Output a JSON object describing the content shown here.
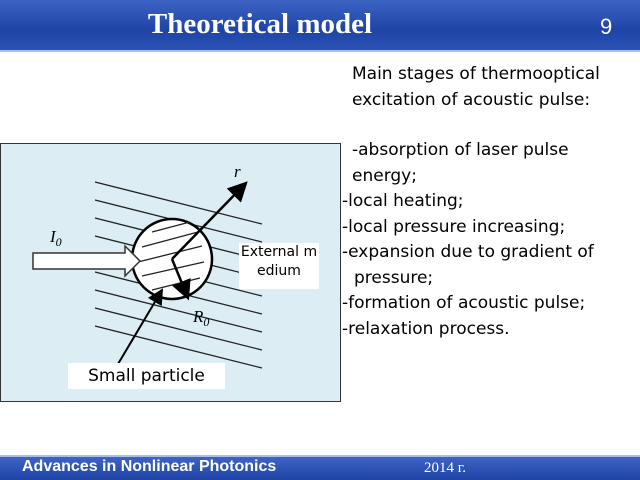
{
  "header": {
    "title": "Theoretical model",
    "slide_number": "9"
  },
  "text": {
    "intro": "Main stages of thermooptical excitation of acoustic pulse:",
    "items": [
      "-absorption of laser pulse energy;",
      "-local heating;",
      "-local pressure increasing;",
      "-expansion due to gradient of pressure;",
      "-formation of acoustic pulse;",
      "-relaxation process."
    ]
  },
  "diagram": {
    "labels": {
      "intensity": "I",
      "intensity_sub": "0",
      "radius_vector": "r",
      "radius": "R",
      "radius_sub": "0",
      "external": "External medium",
      "particle": "Small particle"
    }
  },
  "footer": {
    "left": "Advances in Nonlinear Photonics",
    "right": "2014 г."
  }
}
